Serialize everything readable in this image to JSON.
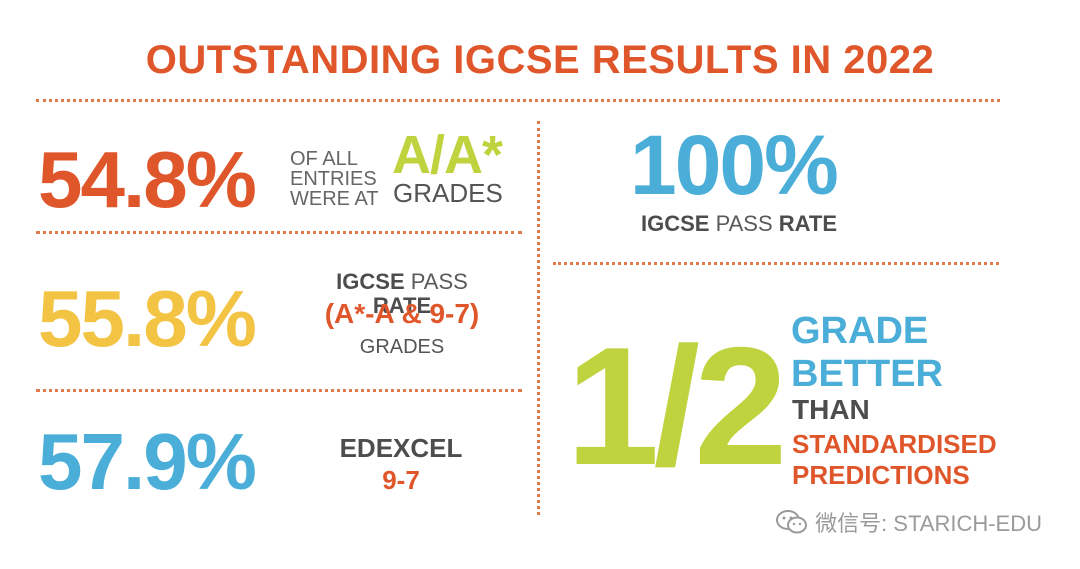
{
  "colors": {
    "orange": "#e0562b",
    "yellow": "#f3c443",
    "blue": "#4aaed8",
    "green": "#bfd33e",
    "gray": "#4d4d4d",
    "dots": "#e07a4a"
  },
  "title": "OUTSTANDING IGCSE RESULTS IN 2022",
  "stat1": {
    "value": "54.8%",
    "line1": "OF ALL",
    "line2": "ENTRIES",
    "line3": "WERE AT",
    "grade": "A/A*",
    "grades_label": "GRADES"
  },
  "stat2": {
    "value": "55.8%",
    "igcse": "IGCSE",
    "pass": "PASS",
    "rate": "RATE",
    "range": "(A*-A & 9-7)",
    "grades_label": "GRADES"
  },
  "stat3": {
    "value": "57.9%",
    "board": "EDEXCEL",
    "grade": "9-7"
  },
  "stat4": {
    "value": "100%",
    "igcse": "IGCSE",
    "pass": "PASS",
    "rate": "RATE"
  },
  "stat5": {
    "value": "1/2",
    "line1": "GRADE",
    "line2": "BETTER",
    "line3": "THAN",
    "line4": "STANDARDISED",
    "line5": "PREDICTIONS"
  },
  "watermark": {
    "icon": "wechat-icon",
    "text": "微信号: STARICH-EDU"
  }
}
